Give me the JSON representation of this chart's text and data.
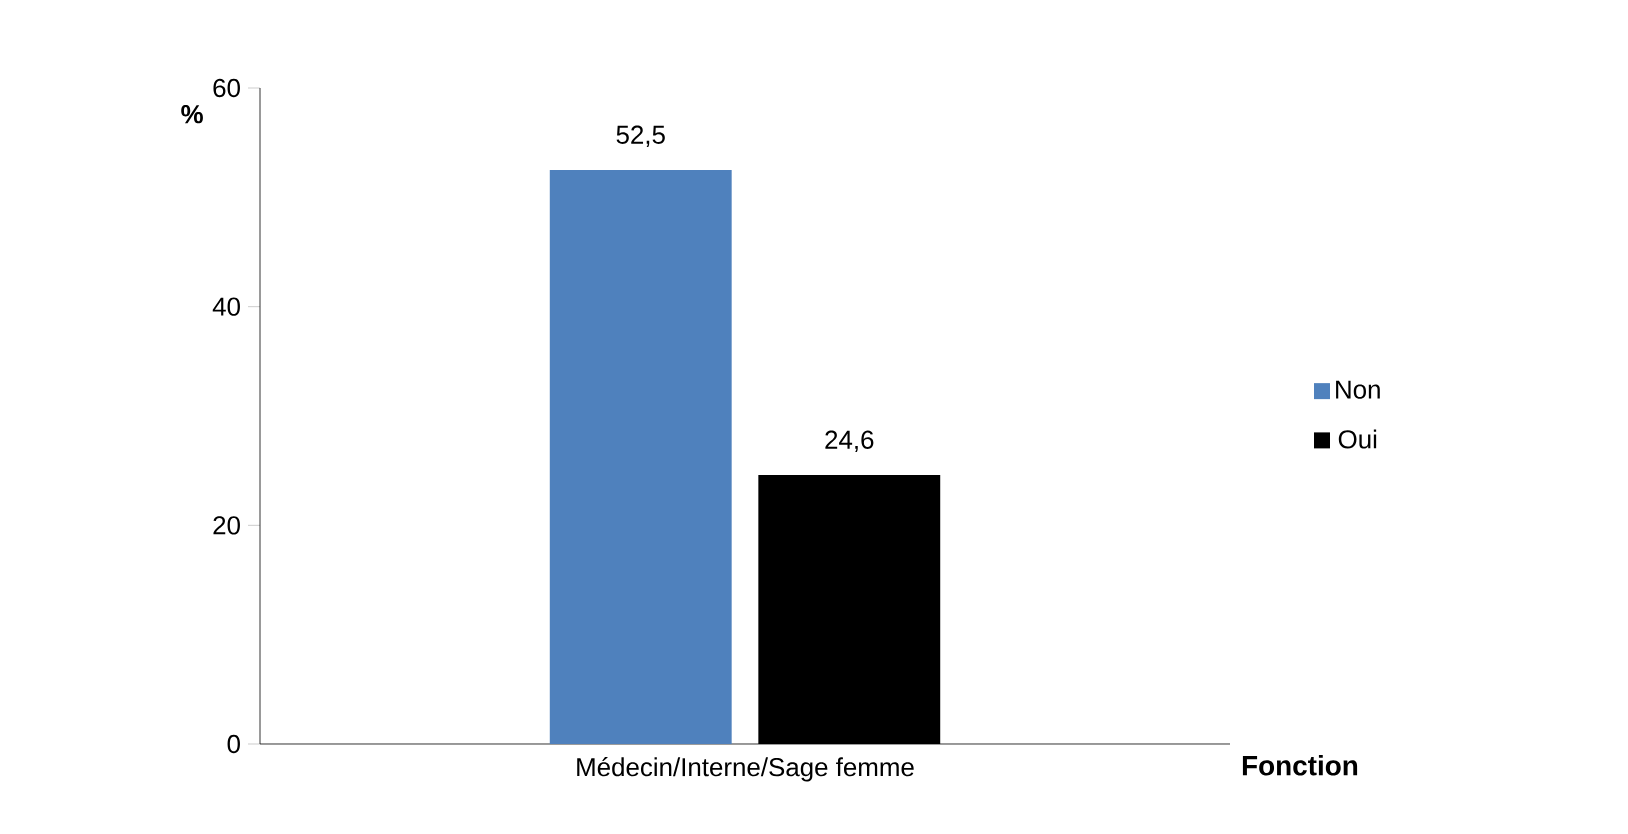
{
  "chart_data": {
    "type": "bar",
    "ylabel": "%",
    "xlabel": "Fonction",
    "categories": [
      "Médecin/Interne/Sage femme"
    ],
    "series": [
      {
        "name": "Non",
        "color": "#4f81bd",
        "values": [
          52.5
        ],
        "value_labels": [
          "52,5"
        ]
      },
      {
        "name": "Oui",
        "color": "#000000",
        "values": [
          24.6
        ],
        "value_labels": [
          "24,6"
        ]
      }
    ],
    "ylim": [
      0,
      60
    ],
    "yticks": [
      0,
      20,
      40,
      60
    ],
    "grid": false,
    "legend": "right"
  }
}
